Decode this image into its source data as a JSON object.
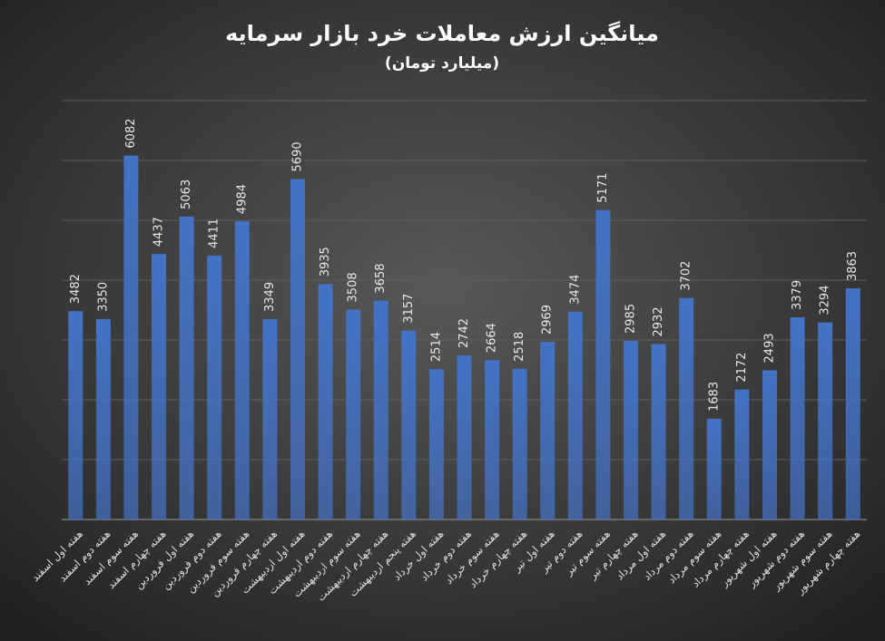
{
  "chart_data": {
    "type": "bar",
    "title": "میانگین ارزش معاملات خرد بازار سرمایه",
    "subtitle": "(میلیارد تومان)",
    "categories": [
      "هفته اول اسفند",
      "هفته دوم اسفند",
      "هفته سوم اسفند",
      "هفته چهارم اسفند",
      "هفته اول فروردین",
      "هفته دوم فروردین",
      "هفته سوم فروردین",
      "هفته چهارم فروردین",
      "هفته اول اردیبهشت",
      "هفته دوم اردیبهشت",
      "هفته سوم اردیبهشت",
      "هفته چهارم اردیبهشت",
      "هفته پنجم اردیبهشت",
      "هفته اول خرداد",
      "هفته دوم خرداد",
      "هفته سوم خرداد",
      "هفته چهارم خرداد",
      "هفته اول تیر",
      "هفته دوم تیر",
      "هفته سوم تیر",
      "هفته چهارم تیر",
      "هفته اول مرداد",
      "هفته دوم مرداد",
      "هفته سوم مرداد",
      "هفته چهارم مرداد",
      "هفته اول شهریور",
      "هفته دوم شهریور",
      "هفته سوم شهریور",
      "هفته چهارم شهریور"
    ],
    "values": [
      3482,
      3350,
      6082,
      4437,
      5063,
      4411,
      4984,
      3349,
      5690,
      3935,
      3508,
      3658,
      3157,
      2514,
      2742,
      2664,
      2518,
      2969,
      3474,
      5171,
      2985,
      2932,
      3702,
      1683,
      2172,
      2493,
      3379,
      3294,
      3863
    ],
    "color": "#4472c4",
    "ylim": [
      0,
      7000
    ],
    "yticks": [
      0,
      1000,
      2000,
      3000,
      4000,
      5000,
      6000,
      7000
    ],
    "grid": true
  }
}
